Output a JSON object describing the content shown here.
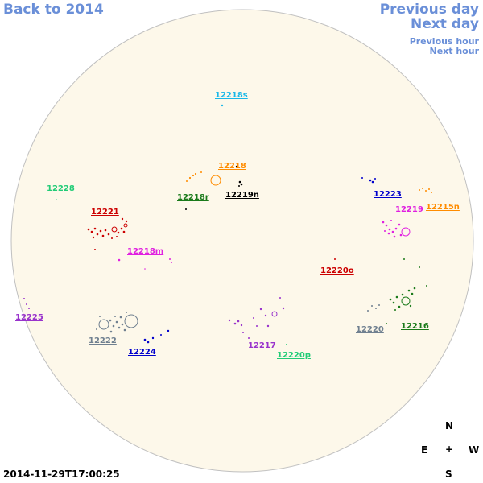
{
  "nav": {
    "back": "Back to 2014",
    "previous_day": "Previous day",
    "next_day": "Next day",
    "previous_hour": "Previous hour",
    "next_hour": "Next hour"
  },
  "timestamp": "2014-11-29T17:00:25",
  "compass": {
    "north": "N",
    "south": "S",
    "east": "E",
    "west": "W",
    "center": "+"
  },
  "colors": {
    "disk_fill": "#fdf8ea",
    "disk_stroke": "#c0c0c0",
    "nav_link": "#6a8fd8"
  },
  "regions": [
    {
      "id": "12218s",
      "label": "12218s",
      "color": "#1ab8e8"
    },
    {
      "id": "12218",
      "label": "12218",
      "color": "#ff8c00"
    },
    {
      "id": "12218r",
      "label": "12218r",
      "color": "#1a7a1a"
    },
    {
      "id": "12219n",
      "label": "12219n",
      "color": "#000000"
    },
    {
      "id": "12228",
      "label": "12228",
      "color": "#22cc77"
    },
    {
      "id": "12221",
      "label": "12221",
      "color": "#cc0000"
    },
    {
      "id": "12218m",
      "label": "12218m",
      "color": "#e020e0"
    },
    {
      "id": "12223",
      "label": "12223",
      "color": "#0000cc"
    },
    {
      "id": "12219",
      "label": "12219",
      "color": "#e020e0"
    },
    {
      "id": "12215n",
      "label": "12215n",
      "color": "#ff8c00"
    },
    {
      "id": "12220o",
      "label": "12220o",
      "color": "#cc0000"
    },
    {
      "id": "12225",
      "label": "12225",
      "color": "#9933cc"
    },
    {
      "id": "12222",
      "label": "12222",
      "color": "#708090"
    },
    {
      "id": "12224",
      "label": "12224",
      "color": "#0000cc"
    },
    {
      "id": "12217",
      "label": "12217",
      "color": "#9933cc"
    },
    {
      "id": "12220p",
      "label": "12220p",
      "color": "#22cc77"
    },
    {
      "id": "12220",
      "label": "12220",
      "color": "#708090"
    },
    {
      "id": "12216",
      "label": "12216",
      "color": "#1a7a1a"
    }
  ]
}
